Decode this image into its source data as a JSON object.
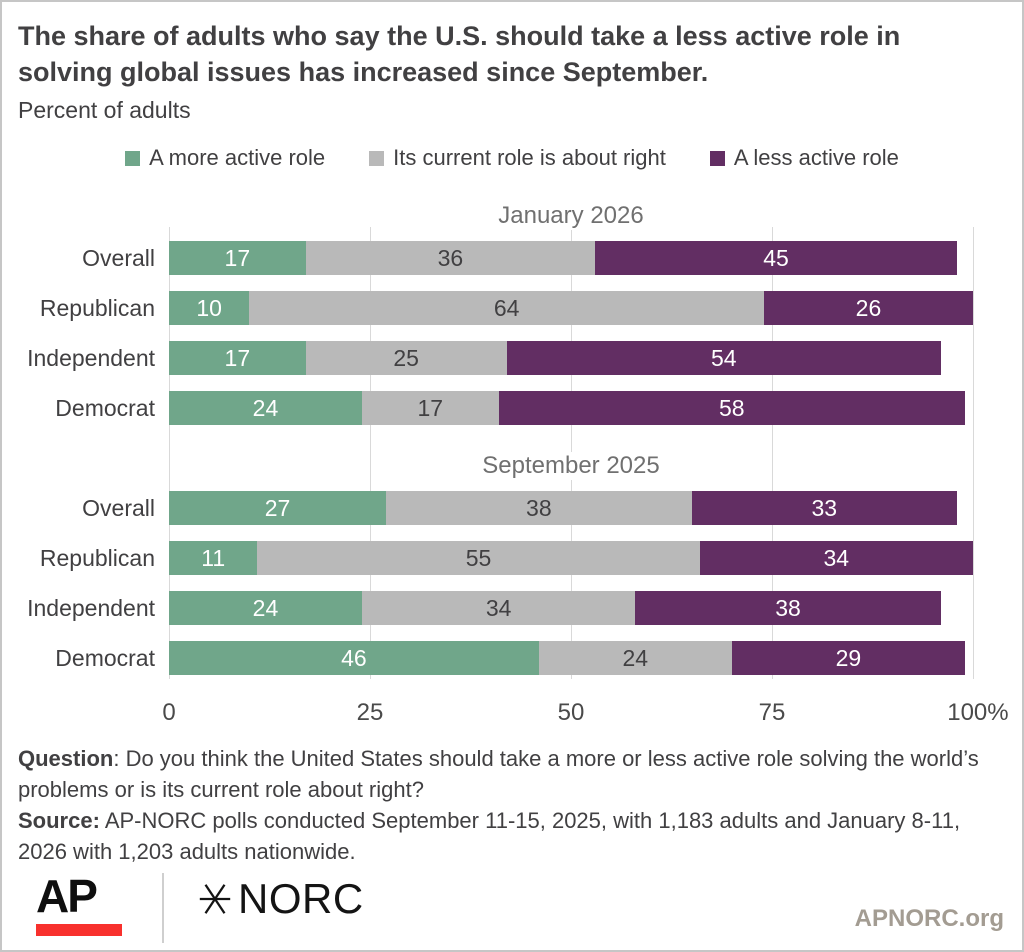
{
  "header": {
    "title": "The share of adults who say the U.S. should take a less active role in\nsolving global issues has increased since September.",
    "subtitle": "Percent of adults"
  },
  "chart_data": {
    "type": "bar",
    "orientation": "horizontal-stacked",
    "title": "The share of adults who say the U.S. should take a less active role in solving global issues has increased since September.",
    "ylabel": "Percent of adults",
    "xlim": [
      0,
      100
    ],
    "grid": true,
    "legend_position": "top",
    "series": [
      {
        "name": "A more active role",
        "color": "#70a68a",
        "value_text_color": "#ffffff",
        "icon": "green-swatch-icon"
      },
      {
        "name": "Its current role is about right",
        "color": "#b9b9b9",
        "value_text_color": "#414042",
        "icon": "gray-swatch-icon"
      },
      {
        "name": "A less active role",
        "color": "#622e63",
        "value_text_color": "#ffffff",
        "icon": "purple-swatch-icon"
      }
    ],
    "sections": [
      {
        "title": "January 2026",
        "rows": [
          {
            "label": "Overall",
            "values": [
              17,
              36,
              45
            ]
          },
          {
            "label": "Republican",
            "values": [
              10,
              64,
              26
            ]
          },
          {
            "label": "Independent",
            "values": [
              17,
              25,
              54
            ]
          },
          {
            "label": "Democrat",
            "values": [
              24,
              17,
              58
            ]
          }
        ]
      },
      {
        "title": "September 2025",
        "rows": [
          {
            "label": "Overall",
            "values": [
              27,
              38,
              33
            ]
          },
          {
            "label": "Republican",
            "values": [
              11,
              55,
              34
            ]
          },
          {
            "label": "Independent",
            "values": [
              24,
              34,
              38
            ]
          },
          {
            "label": "Democrat",
            "values": [
              46,
              24,
              29
            ]
          }
        ]
      }
    ],
    "xticks": [
      {
        "value": 0,
        "label": "0"
      },
      {
        "value": 25,
        "label": "25"
      },
      {
        "value": 50,
        "label": "50"
      },
      {
        "value": 75,
        "label": "75"
      },
      {
        "value": 100,
        "label": "100%"
      }
    ]
  },
  "footnote": {
    "question_label": "Question",
    "question_text": ": Do you think the United States should take a more or less active role solving the world’s\nproblems or is its current role about right?",
    "source_label": "Source:",
    "source_text": " AP-NORC polls conducted September 11-15, 2025, with 1,183 adults and January 8-11,\n2026 with 1,203 adults nationwide."
  },
  "footer": {
    "ap_logo_text": "AP",
    "norc_logo_text": "NORC",
    "website": "APNORC.org",
    "ap_red": "#f8312d"
  }
}
